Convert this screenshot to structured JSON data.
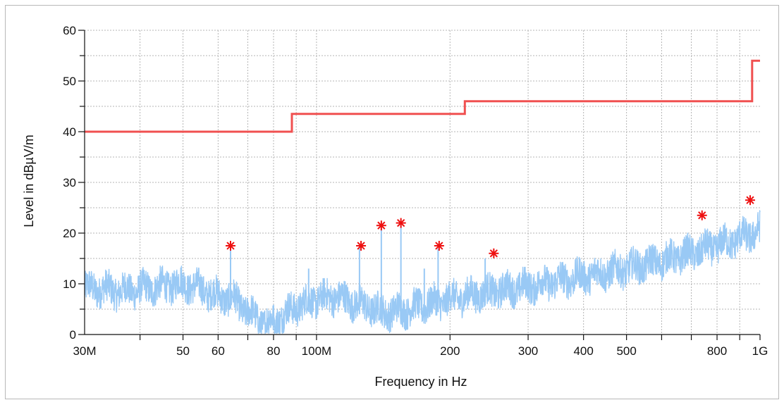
{
  "chart_data": {
    "type": "line",
    "xlabel": "Frequency in Hz",
    "ylabel": "Level in dBµV/m",
    "x_scale": "log",
    "xlim": [
      30000000,
      1000000000
    ],
    "ylim": [
      0,
      60
    ],
    "grid": true,
    "x_ticks": [
      {
        "value": 30000000,
        "label": "30M"
      },
      {
        "value": 50000000,
        "label": "50"
      },
      {
        "value": 60000000,
        "label": "60"
      },
      {
        "value": 80000000,
        "label": "80"
      },
      {
        "value": 100000000,
        "label": "100M"
      },
      {
        "value": 200000000,
        "label": "200"
      },
      {
        "value": 300000000,
        "label": "300"
      },
      {
        "value": 400000000,
        "label": "400"
      },
      {
        "value": 500000000,
        "label": "500"
      },
      {
        "value": 800000000,
        "label": "800"
      },
      {
        "value": 1000000000,
        "label": "1G"
      }
    ],
    "y_ticks": [
      {
        "value": 0,
        "label": "0"
      },
      {
        "value": 10,
        "label": "10"
      },
      {
        "value": 20,
        "label": "20"
      },
      {
        "value": 30,
        "label": "30"
      },
      {
        "value": 40,
        "label": "40"
      },
      {
        "value": 50,
        "label": "50"
      },
      {
        "value": 60,
        "label": "60"
      }
    ],
    "limit_line": {
      "color": "#f05050",
      "points": [
        [
          30000000,
          40
        ],
        [
          88000000,
          40
        ],
        [
          88000000,
          43.5
        ],
        [
          216000000,
          43.5
        ],
        [
          216000000,
          46
        ],
        [
          960000000,
          46
        ],
        [
          960000000,
          54
        ],
        [
          1000000000,
          54
        ]
      ]
    },
    "spectrum": {
      "color": "#99c9f5",
      "envelope": [
        [
          30000000,
          9
        ],
        [
          33000000,
          9
        ],
        [
          36000000,
          8.5
        ],
        [
          40000000,
          9
        ],
        [
          45000000,
          9.5
        ],
        [
          50000000,
          10
        ],
        [
          55000000,
          9
        ],
        [
          60000000,
          7.5
        ],
        [
          65000000,
          7
        ],
        [
          70000000,
          4.5
        ],
        [
          75000000,
          2.5
        ],
        [
          80000000,
          2.5
        ],
        [
          85000000,
          4
        ],
        [
          90000000,
          5.5
        ],
        [
          100000000,
          7
        ],
        [
          110000000,
          7.5
        ],
        [
          120000000,
          6.5
        ],
        [
          130000000,
          5.5
        ],
        [
          140000000,
          4.5
        ],
        [
          150000000,
          4.5
        ],
        [
          160000000,
          5
        ],
        [
          180000000,
          6
        ],
        [
          200000000,
          7
        ],
        [
          250000000,
          8.5
        ],
        [
          300000000,
          9.5
        ],
        [
          400000000,
          11.5
        ],
        [
          500000000,
          13
        ],
        [
          600000000,
          14.5
        ],
        [
          700000000,
          16
        ],
        [
          800000000,
          17.5
        ],
        [
          900000000,
          19
        ],
        [
          1000000000,
          20.5
        ]
      ],
      "spikes": [
        [
          64000000,
          17
        ],
        [
          96000000,
          13
        ],
        [
          125000000,
          17
        ],
        [
          140000000,
          21
        ],
        [
          155000000,
          21.5
        ],
        [
          175000000,
          13
        ],
        [
          188000000,
          17
        ],
        [
          240000000,
          15
        ]
      ]
    },
    "peak_markers": {
      "color": "#ee1111",
      "points": [
        [
          64000000,
          17.5
        ],
        [
          126000000,
          17.5
        ],
        [
          140000000,
          21.5
        ],
        [
          155000000,
          22
        ],
        [
          189000000,
          17.5
        ],
        [
          251000000,
          16
        ],
        [
          740000000,
          23.5
        ],
        [
          950000000,
          26.5
        ]
      ]
    }
  }
}
